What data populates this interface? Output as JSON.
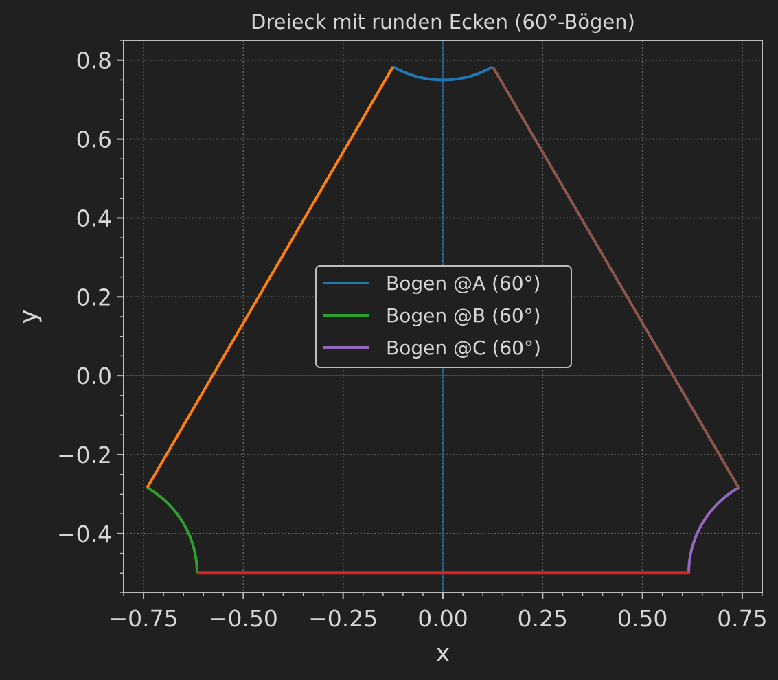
{
  "chart_data": {
    "type": "line",
    "title": "Dreieck mit runden Ecken (60°-Bögen)",
    "xlabel": "x",
    "ylabel": "y",
    "xlim": [
      -0.8,
      0.8
    ],
    "ylim": [
      -0.55,
      0.85
    ],
    "xticks": [
      -0.75,
      -0.5,
      -0.25,
      0.0,
      0.25,
      0.5,
      0.75
    ],
    "xtick_labels": [
      "−0.75",
      "−0.50",
      "−0.25",
      "0.00",
      "0.25",
      "0.50",
      "0.75"
    ],
    "yticks": [
      -0.4,
      -0.2,
      0.0,
      0.2,
      0.4,
      0.6,
      0.8
    ],
    "ytick_labels": [
      "−0.4",
      "−0.2",
      "0.0",
      "0.2",
      "0.4",
      "0.6",
      "0.8"
    ],
    "grid": true,
    "legend_position": "center",
    "series": [
      {
        "name": "Bogen @A (60°)",
        "kind": "arc",
        "color": "#1f77b4",
        "center": [
          0.0,
          1.0
        ],
        "radius": 0.25,
        "angle_range_deg": [
          240,
          300
        ],
        "in_legend": true
      },
      {
        "name": "Bogen @B (60°)",
        "kind": "arc",
        "color": "#2ca02c",
        "center": [
          -0.866,
          -0.5
        ],
        "radius": 0.25,
        "angle_range_deg": [
          0,
          60
        ],
        "in_legend": true
      },
      {
        "name": "Bogen @C (60°)",
        "kind": "arc",
        "color": "#9467bd",
        "center": [
          0.866,
          -0.5
        ],
        "radius": 0.25,
        "angle_range_deg": [
          120,
          180
        ],
        "in_legend": true
      },
      {
        "kind": "segment",
        "color": "#ff7f0e",
        "x": [
          -0.125,
          -0.741
        ],
        "y": [
          0.7835,
          -0.2835
        ],
        "in_legend": false
      },
      {
        "kind": "segment",
        "color": "#8c564b",
        "x": [
          0.125,
          0.741
        ],
        "y": [
          0.7835,
          -0.2835
        ],
        "in_legend": false
      },
      {
        "kind": "segment",
        "color": "#d62728",
        "x": [
          -0.616,
          0.616
        ],
        "y": [
          -0.5,
          -0.5
        ],
        "in_legend": false
      }
    ],
    "reference_lines": [
      {
        "orientation": "vertical",
        "value": 0.0,
        "color": "#1f77b4"
      },
      {
        "orientation": "horizontal",
        "value": 0.0,
        "color": "#1f77b4"
      }
    ]
  }
}
